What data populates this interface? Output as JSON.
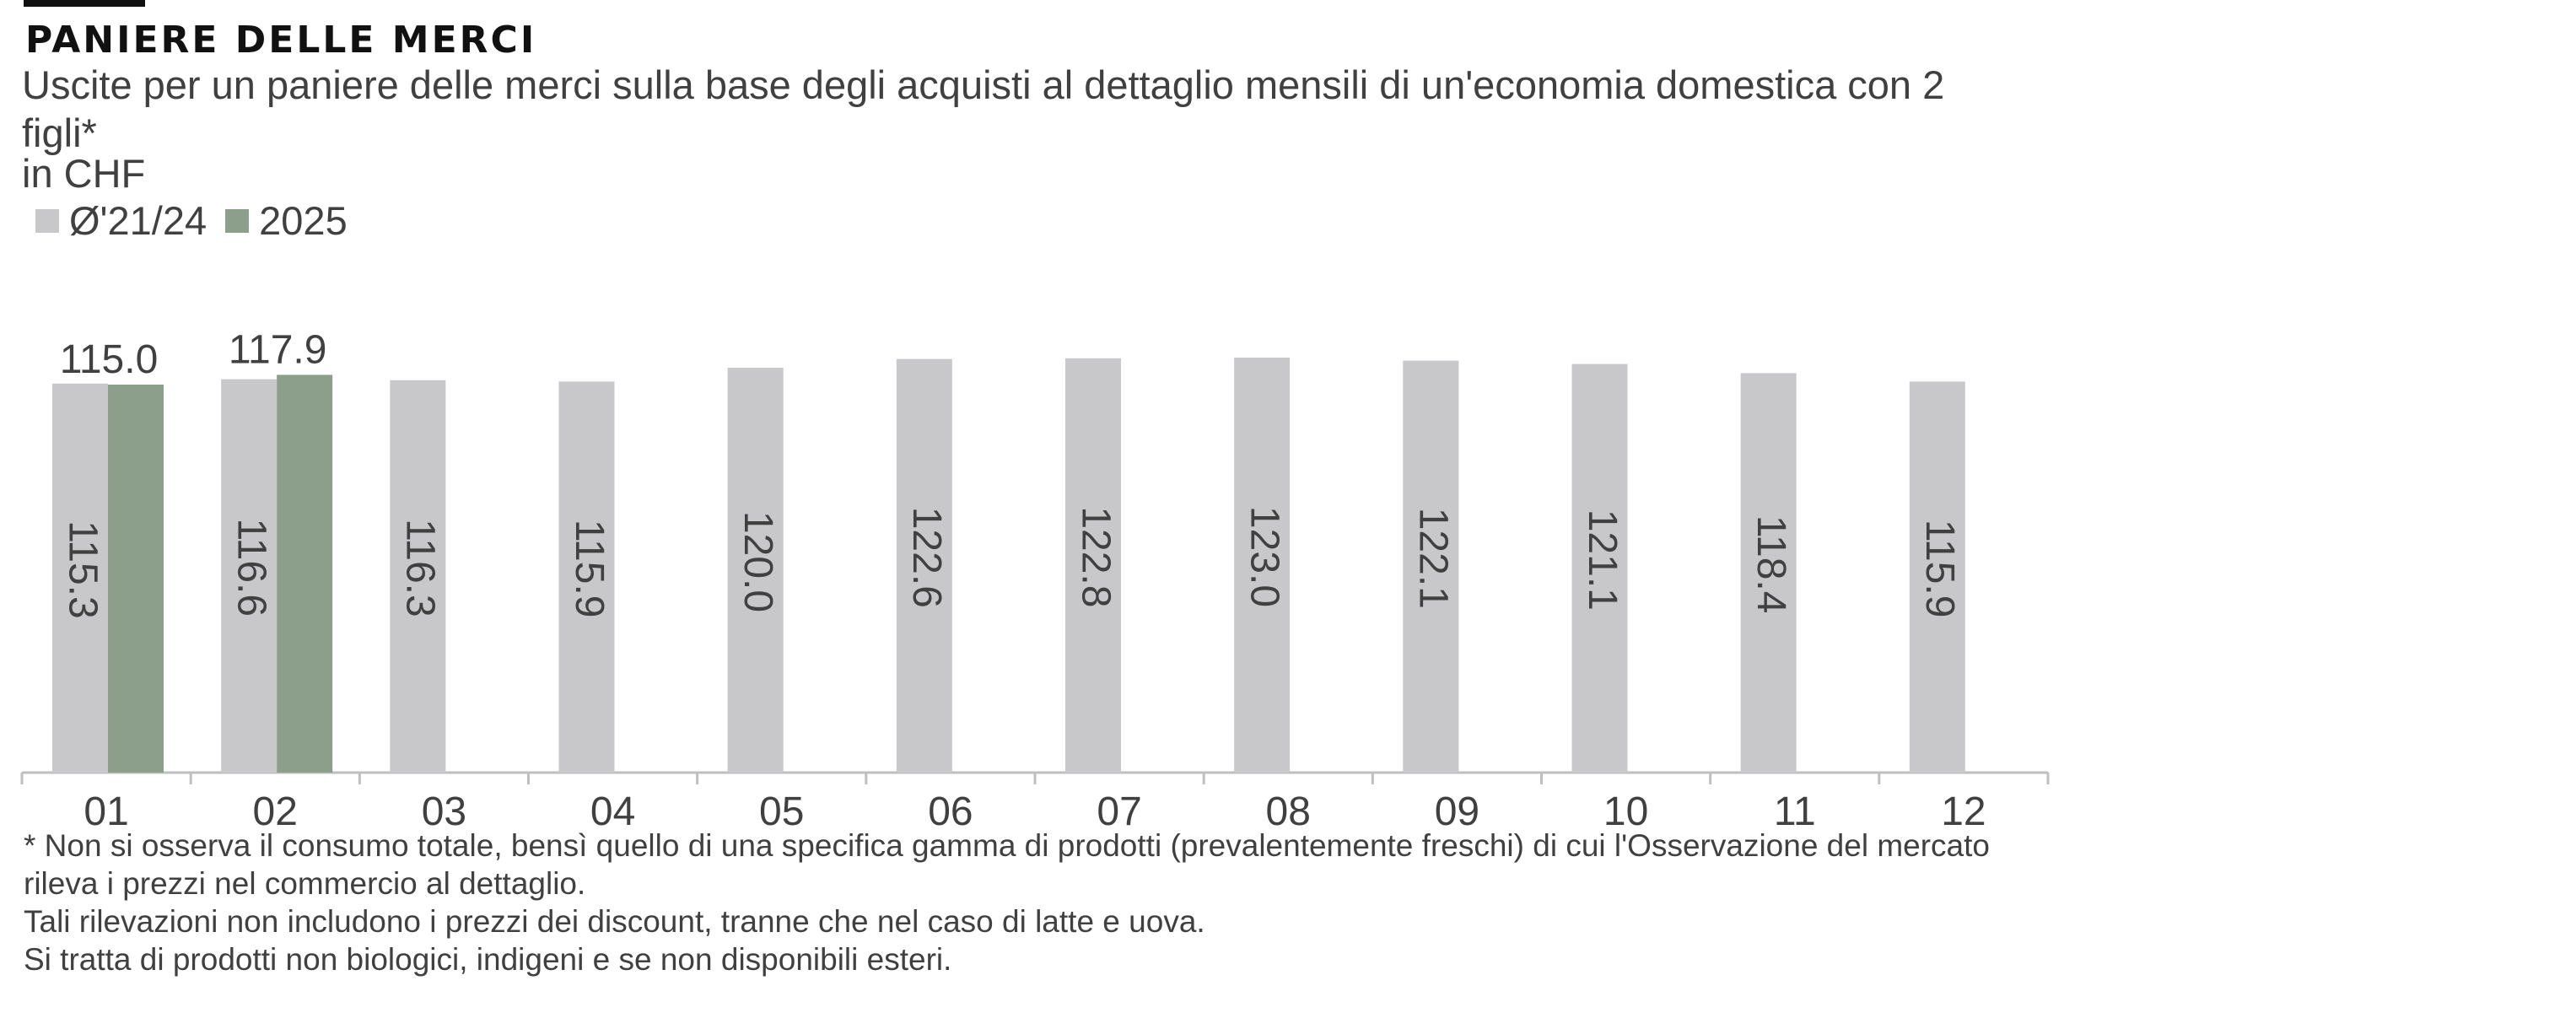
{
  "colors": {
    "series_avg": "#c8c8ca",
    "series_2025": "#8c9f8a",
    "axis": "#bfbfbf",
    "text": "#404040"
  },
  "chart_data": {
    "type": "bar",
    "title": "PANIERE DELLE MERCI",
    "subtitle": "Uscite per un paniere delle merci sulla base degli acquisti al dettaglio mensili di un'economia domestica con 2 figli*",
    "ylabel": "in CHF",
    "xlabel": "",
    "categories": [
      "01",
      "02",
      "03",
      "04",
      "05",
      "06",
      "07",
      "08",
      "09",
      "10",
      "11",
      "12"
    ],
    "series": [
      {
        "name": "Ø'21/24",
        "values": [
          115.3,
          116.6,
          116.3,
          115.9,
          120.0,
          122.6,
          122.8,
          123.0,
          122.1,
          121.1,
          118.4,
          115.9
        ],
        "labels": [
          "115.3",
          "116.6",
          "116.3",
          "115.9",
          "120.0",
          "122.6",
          "122.8",
          "123.0",
          "122.1",
          "121.1",
          "118.4",
          "115.9"
        ]
      },
      {
        "name": "2025",
        "values": [
          115.0,
          117.9,
          null,
          null,
          null,
          null,
          null,
          null,
          null,
          null,
          null,
          null
        ],
        "labels": [
          "115.0",
          "117.9",
          "",
          "",
          "",
          "",
          "",
          "",
          "",
          "",
          "",
          ""
        ]
      }
    ],
    "ylim": [
      0,
      130
    ],
    "grid": false,
    "legend": "top-left"
  },
  "footnote": {
    "line1": "* Non si osserva il consumo totale, bensì quello di una specifica gamma di prodotti  (prevalentemente  freschi) di cui l'Osservazione del mercato rileva i prezzi nel commercio al dettaglio.",
    "line2": "Tali rilevazioni non includono i prezzi dei discount, tranne che nel caso di latte e uova.",
    "line3": "Si tratta di prodotti non biologici, indigeni e se non disponibili esteri."
  }
}
